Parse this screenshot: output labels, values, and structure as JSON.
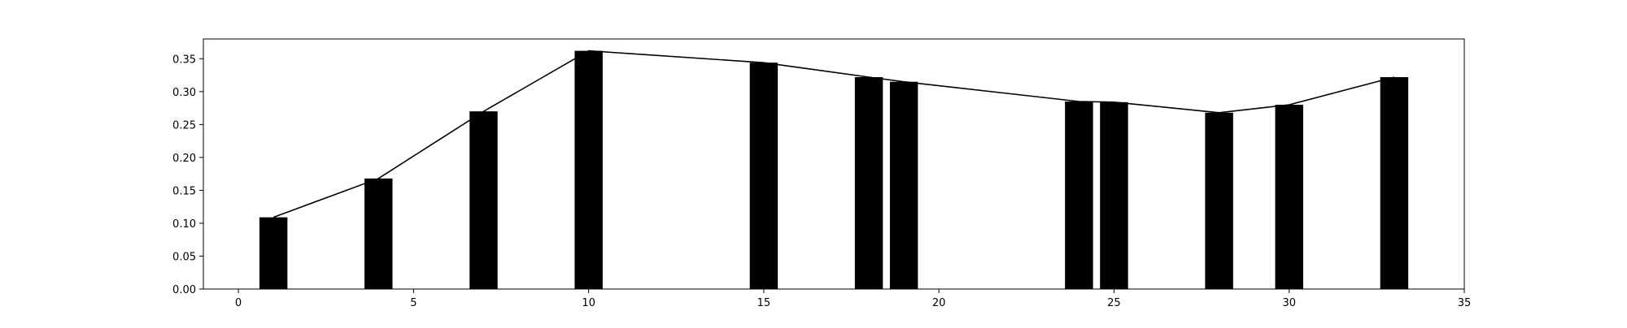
{
  "chart_data": {
    "type": "bar",
    "title": "",
    "xlabel": "",
    "ylabel": "",
    "xlim": [
      -1,
      35
    ],
    "ylim": [
      0,
      0.38
    ],
    "grid": false,
    "x_ticks": [
      0,
      5,
      10,
      15,
      20,
      25,
      30,
      35
    ],
    "y_ticks": [
      0.0,
      0.05,
      0.1,
      0.15,
      0.2,
      0.25,
      0.3,
      0.35
    ],
    "x_tick_labels": [
      "0",
      "5",
      "10",
      "15",
      "20",
      "25",
      "30",
      "35"
    ],
    "y_tick_labels": [
      "0.00",
      "0.05",
      "0.10",
      "0.15",
      "0.20",
      "0.25",
      "0.30",
      "0.35"
    ],
    "bar_width": 0.8,
    "bar_color": "#000000",
    "line_color": "#000000",
    "x": [
      1,
      4,
      7,
      10,
      15,
      18,
      19,
      24,
      25,
      28,
      30,
      33
    ],
    "values": [
      0.109,
      0.168,
      0.27,
      0.362,
      0.344,
      0.322,
      0.315,
      0.285,
      0.284,
      0.268,
      0.28,
      0.322
    ]
  }
}
